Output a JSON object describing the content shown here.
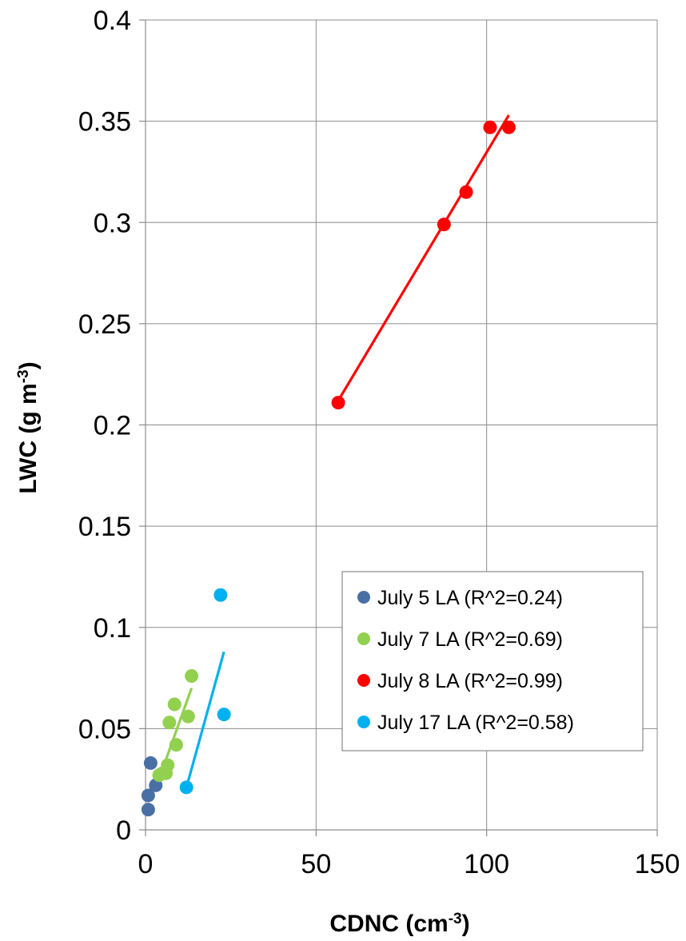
{
  "chart_data": {
    "type": "scatter",
    "xlabel": "CDNC (cm",
    "xlabel_sup": "-3",
    "xlabel_end": ")",
    "ylabel": "LWC (g m",
    "ylabel_sup": "-3",
    "ylabel_end": ")",
    "xlim": [
      0,
      150
    ],
    "ylim": [
      0,
      0.4
    ],
    "xticks": [
      0,
      50,
      100,
      150
    ],
    "xtick_labels": [
      "0",
      "50",
      "100",
      "150"
    ],
    "yticks": [
      0,
      0.05,
      0.1,
      0.15,
      0.2,
      0.25,
      0.3,
      0.35,
      0.4
    ],
    "ytick_labels": [
      "0",
      "0.05",
      "0.1",
      "0.15",
      "0.2",
      "0.25",
      "0.3",
      "0.35",
      "0.4"
    ],
    "grid": true,
    "legend_position": "bottom-right",
    "series": [
      {
        "name": "July 5 LA (R^2=0.24)",
        "color": "#4A6FA5",
        "points": [
          [
            1.5,
            0.033
          ],
          [
            0.8,
            0.017
          ],
          [
            3,
            0.022
          ],
          [
            0.8,
            0.01
          ]
        ],
        "trendline": [
          [
            0.5,
            0.016
          ],
          [
            3,
            0.027
          ]
        ]
      },
      {
        "name": "July 7 LA (R^2=0.69)",
        "color": "#92D050",
        "points": [
          [
            13.5,
            0.076
          ],
          [
            8.5,
            0.062
          ],
          [
            7,
            0.053
          ],
          [
            12.5,
            0.056
          ],
          [
            9,
            0.042
          ],
          [
            6.5,
            0.032
          ],
          [
            5,
            0.028
          ],
          [
            6,
            0.028
          ],
          [
            4,
            0.027
          ]
        ],
        "trendline": [
          [
            3.5,
            0.023
          ],
          [
            13.5,
            0.07
          ]
        ]
      },
      {
        "name": "July 8 LA (R^2=0.99)",
        "color": "#FF0000",
        "points": [
          [
            56.5,
            0.211
          ],
          [
            87.5,
            0.299
          ],
          [
            94,
            0.315
          ],
          [
            101,
            0.347
          ],
          [
            106.5,
            0.347
          ]
        ],
        "trendline": [
          [
            56.5,
            0.212
          ],
          [
            106.5,
            0.353
          ]
        ]
      },
      {
        "name": "July 17 LA (R^2=0.58)",
        "color": "#00B0F0",
        "points": [
          [
            22,
            0.116
          ],
          [
            23,
            0.057
          ],
          [
            12,
            0.021
          ]
        ],
        "trendline": [
          [
            12,
            0.021
          ],
          [
            23,
            0.088
          ]
        ]
      }
    ]
  }
}
